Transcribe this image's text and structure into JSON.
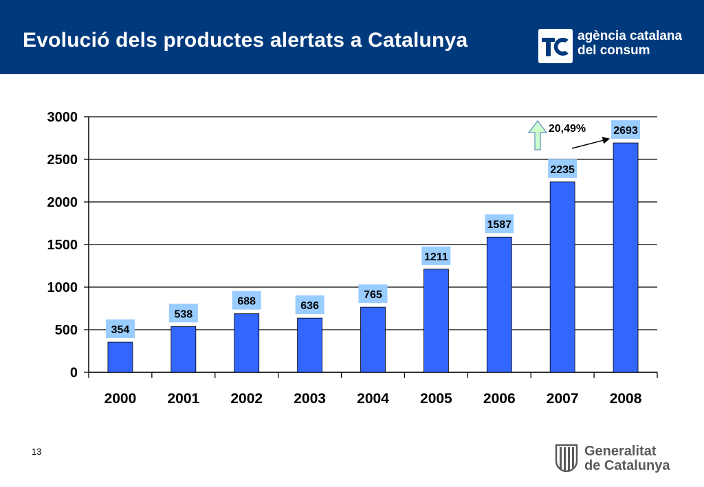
{
  "slide": {
    "title": "Evolució dels productes alertats a Catalunya",
    "page_number": "13"
  },
  "agency": {
    "name_line1": "agència catalana",
    "name_line2": "del consum"
  },
  "footer_logo": {
    "name_line1": "Generalitat",
    "name_line2": "de Catalunya"
  },
  "colors": {
    "header": "#003a7d",
    "bar": "#3366ff",
    "label_box": "#99ccff",
    "arrow_fill": "#ccffcc",
    "arrow_stroke": "#7aa0c8"
  },
  "chart_data": {
    "type": "bar",
    "title": "",
    "xlabel": "",
    "ylabel": "",
    "categories": [
      "2000",
      "2001",
      "2002",
      "2003",
      "2004",
      "2005",
      "2006",
      "2007",
      "2008"
    ],
    "values": [
      354,
      538,
      688,
      636,
      765,
      1211,
      1587,
      2235,
      2693
    ],
    "ylim": [
      0,
      3000
    ],
    "yticks": [
      0,
      500,
      1000,
      1500,
      2000,
      2500,
      3000
    ],
    "grid": true,
    "annotation": {
      "text": "20,49%",
      "from": "2007",
      "to": "2008"
    }
  }
}
